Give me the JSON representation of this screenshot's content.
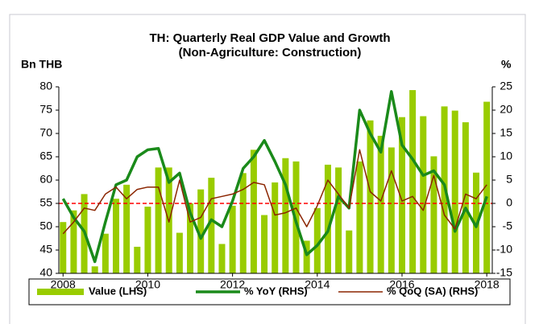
{
  "chart_data": {
    "type": "bar_line",
    "title": "TH: Quarterly Real GDP Value and Growth",
    "subtitle": "(Non-Agriculture: Construction)",
    "y_label": "Bn THB",
    "y2_label": "%",
    "x": [
      2008,
      2008.25,
      2008.5,
      2008.75,
      2009,
      2009.25,
      2009.5,
      2009.75,
      2010,
      2010.25,
      2010.5,
      2010.75,
      2011,
      2011.25,
      2011.5,
      2011.75,
      2012,
      2012.25,
      2012.5,
      2012.75,
      2013,
      2013.25,
      2013.5,
      2013.75,
      2014,
      2014.25,
      2014.5,
      2014.75,
      2015,
      2015.25,
      2015.5,
      2015.75,
      2016,
      2016.25,
      2016.5,
      2016.75,
      2017,
      2017.25,
      2017.5,
      2017.75,
      2018
    ],
    "series": [
      {
        "name": "Value (LHS)",
        "type": "bar",
        "axis": "y",
        "color": "#99cc00",
        "values": [
          51,
          53.5,
          57,
          41.5,
          48.5,
          56,
          59,
          45.7,
          54.3,
          62.7,
          62.7,
          48.7,
          55,
          58,
          60.5,
          46.3,
          54.5,
          61.5,
          66.5,
          52.5,
          59.5,
          64.7,
          64,
          47,
          54,
          63.3,
          62.7,
          49.2,
          64,
          72.8,
          69.5,
          67,
          73.5,
          79.3,
          73.7,
          65.1,
          75.8,
          74.9,
          72.4,
          61.6,
          76.8
        ]
      },
      {
        "name": "% YoY (RHS)",
        "type": "line",
        "axis": "y2",
        "color": "#1a8a1a",
        "width": 3.5,
        "values": [
          1,
          -3,
          -6,
          -12.5,
          -4,
          4,
          5,
          10,
          11.5,
          11.8,
          4.5,
          6.5,
          -2,
          -7.5,
          -3.5,
          -5,
          0.5,
          7.5,
          10,
          13.5,
          9,
          4,
          -4,
          -11,
          -9,
          -6,
          1.5,
          -1,
          20,
          15,
          11,
          24,
          12.5,
          9.5,
          6,
          7,
          4,
          -6,
          -1,
          -5,
          1.5
        ]
      },
      {
        "name": "% QoQ (SA) (RHS)",
        "type": "line",
        "axis": "y2",
        "color": "#8b2500",
        "width": 1.5,
        "values": [
          -6.5,
          -4,
          -1,
          -1.5,
          2,
          3.5,
          1,
          3,
          3.5,
          3.5,
          -4,
          5,
          -4,
          -3,
          1,
          1.5,
          2,
          3,
          4.5,
          4,
          -2.5,
          -2,
          -1,
          -5,
          -0.5,
          5,
          2,
          -1,
          11.5,
          2.5,
          0.5,
          7,
          0.5,
          1.5,
          -1.5,
          6,
          -2.5,
          -5.5,
          2,
          1,
          4
        ]
      }
    ],
    "ref_line": {
      "axis": "y2",
      "value": 0,
      "color": "#ff0000"
    },
    "xlim": [
      2007.9,
      2018.13
    ],
    "xticks": [
      2008,
      2010,
      2012,
      2014,
      2016,
      2018
    ],
    "ylim": [
      40,
      80
    ],
    "yticks": [
      40,
      45,
      50,
      55,
      60,
      65,
      70,
      75,
      80
    ],
    "y2lim": [
      -15,
      25
    ],
    "y2ticks": [
      -15,
      -10,
      -5,
      0,
      5,
      10,
      15,
      20,
      25
    ],
    "grid": false,
    "legend": "bottom"
  }
}
